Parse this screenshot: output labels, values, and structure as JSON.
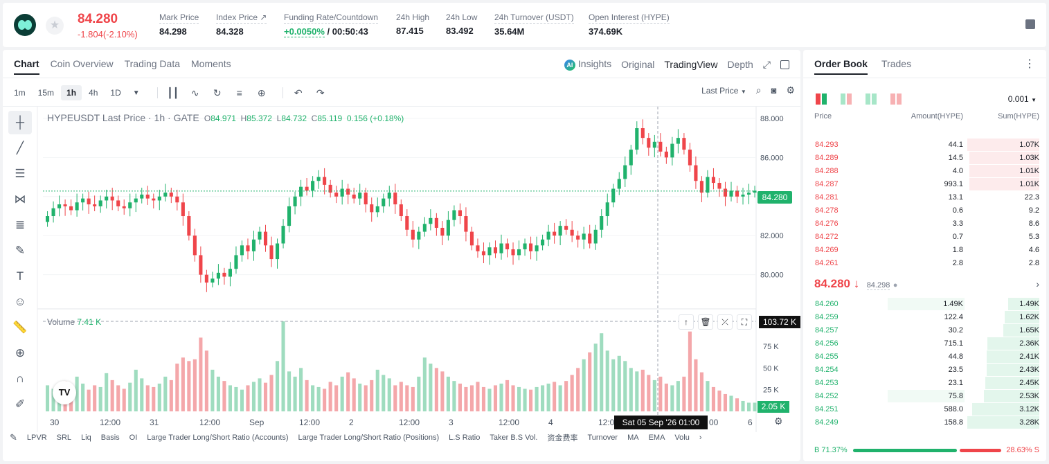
{
  "header": {
    "last_price": "84.280",
    "change": "-1.804(-2.10%)",
    "stats": [
      {
        "label": "Mark Price",
        "value": "84.298"
      },
      {
        "label": "Index Price ↗",
        "value": "84.328"
      },
      {
        "label": "Funding Rate/Countdown",
        "value_green": "+0.0050%",
        "value_rest": " / 00:50:43"
      },
      {
        "label": "24h High",
        "value": "87.415"
      },
      {
        "label": "24h Low",
        "value": "83.492"
      },
      {
        "label": "24h Turnover (USDT)",
        "value": "35.64M"
      },
      {
        "label": "Open Interest (HYPE)",
        "value": "374.69K"
      }
    ]
  },
  "chart_panel": {
    "tabs": [
      "Chart",
      "Coin Overview",
      "Trading Data",
      "Moments"
    ],
    "views": {
      "insights": "Insights",
      "original": "Original",
      "tradingview": "TradingView",
      "depth": "Depth"
    },
    "timeframes": [
      "1m",
      "15m",
      "1h",
      "4h",
      "1D"
    ],
    "active_timeframe": "1h",
    "price_source": "Last Price",
    "legend": {
      "title": "HYPEUSDT Last Price · 1h · GATE",
      "o": "84.971",
      "h": "85.372",
      "l": "84.732",
      "c": "85.119",
      "chg": "0.156 (+0.18%)"
    },
    "volume_label": "Volume",
    "volume_value": "7.41 K",
    "price_tag": "84.280",
    "volume_tag": "103.72 K",
    "volume_now_tag": "2.05 K",
    "time_tag": "Sat 05 Sep '26   01:00",
    "bottom_indicators": [
      "LPVR",
      "SRL",
      "Liq",
      "Basis",
      "OI",
      "Large Trader Long/Short Ratio (Accounts)",
      "Large Trader Long/Short Ratio (Positions)",
      "L.S Ratio",
      "Taker B.S Vol.",
      "资金费率",
      "Turnover",
      "MA",
      "EMA",
      "Volu"
    ]
  },
  "chart_data": {
    "type": "candlestick",
    "title": "HYPEUSDT Last Price · 1h · GATE",
    "y_ticks": [
      "88.000",
      "86.000",
      "84.000",
      "82.000",
      "80.000"
    ],
    "ylim": [
      78.5,
      88.6
    ],
    "x_ticks": [
      "30",
      "12:00",
      "31",
      "12:00",
      "Sep",
      "12:00",
      "2",
      "12:00",
      "3",
      "12:00",
      "4",
      "12:00",
      "00",
      "6"
    ],
    "volume_ticks": [
      "75 K",
      "50 K",
      "25 K"
    ],
    "volume_max": 103.72,
    "series_close": [
      83.0,
      83.4,
      83.6,
      83.5,
      83.3,
      83.7,
      83.9,
      83.6,
      83.5,
      83.8,
      84.0,
      83.8,
      83.5,
      83.4,
      83.7,
      83.9,
      84.1,
      83.9,
      83.8,
      84.0,
      84.2,
      84.0,
      83.7,
      83.0,
      82.0,
      81.0,
      80.0,
      79.6,
      79.8,
      80.1,
      79.9,
      80.3,
      81.0,
      81.5,
      81.2,
      81.8,
      82.2,
      81.5,
      80.8,
      81.6,
      82.5,
      83.5,
      84.0,
      84.5,
      84.3,
      84.8,
      85.0,
      84.6,
      84.2,
      84.0,
      84.4,
      84.1,
      83.9,
      84.2,
      83.6,
      83.2,
      83.5,
      83.9,
      84.2,
      83.6,
      83.0,
      82.3,
      81.8,
      82.2,
      82.6,
      82.9,
      82.4,
      82.0,
      82.8,
      83.3,
      83.0,
      82.2,
      81.5,
      81.2,
      81.0,
      81.4,
      81.1,
      81.6,
      81.3,
      81.0,
      81.3,
      81.6,
      81.2,
      81.5,
      81.8,
      82.2,
      82.0,
      82.5,
      82.3,
      82.0,
      81.8,
      82.1,
      81.6,
      82.3,
      83.0,
      83.7,
      84.4,
      84.9,
      85.6,
      86.4,
      87.5,
      87.0,
      86.5,
      86.8,
      86.3,
      86.0,
      86.7,
      87.0,
      86.4,
      85.6,
      84.8,
      84.2,
      85.0,
      84.7,
      84.4,
      84.0,
      84.3,
      84.0,
      84.1,
      84.2,
      84.3
    ],
    "series_volume": [
      30,
      26,
      22,
      35,
      28,
      40,
      32,
      25,
      30,
      28,
      44,
      36,
      30,
      26,
      33,
      48,
      38,
      30,
      28,
      32,
      40,
      36,
      55,
      62,
      58,
      60,
      85,
      70,
      48,
      40,
      35,
      30,
      28,
      25,
      30,
      34,
      38,
      33,
      42,
      58,
      103.72,
      46,
      40,
      50,
      36,
      30,
      28,
      26,
      34,
      30,
      40,
      45,
      38,
      32,
      30,
      36,
      48,
      42,
      38,
      30,
      34,
      30,
      28,
      40,
      62,
      55,
      50,
      46,
      40,
      35,
      32,
      28,
      30,
      34,
      28,
      26,
      30,
      32,
      36,
      30,
      28,
      26,
      25,
      28,
      30,
      32,
      34,
      30,
      35,
      42,
      50,
      60,
      68,
      78,
      90,
      70,
      60,
      64,
      58,
      50,
      46,
      48,
      42,
      36,
      40,
      32,
      30,
      35,
      40,
      92,
      60,
      45,
      35,
      28,
      24,
      20,
      18,
      15,
      12,
      10
    ]
  },
  "order_book": {
    "tabs": [
      "Order Book",
      "Trades"
    ],
    "step": "0.001",
    "headers": {
      "price": "Price",
      "amount": "Amount(HYPE)",
      "sum": "Sum(HYPE)"
    },
    "asks": [
      {
        "price": "84.293",
        "amount": "44.1",
        "sum": "1.07K",
        "depth": 0.32
      },
      {
        "price": "84.289",
        "amount": "14.5",
        "sum": "1.03K",
        "depth": 0.31
      },
      {
        "price": "84.288",
        "amount": "4.0",
        "sum": "1.01K",
        "depth": 0.31
      },
      {
        "price": "84.287",
        "amount": "993.1",
        "sum": "1.01K",
        "depth": 0.31
      },
      {
        "price": "84.281",
        "amount": "13.1",
        "sum": "22.3",
        "depth": 0
      },
      {
        "price": "84.278",
        "amount": "0.6",
        "sum": "9.2",
        "depth": 0
      },
      {
        "price": "84.276",
        "amount": "3.3",
        "sum": "8.6",
        "depth": 0
      },
      {
        "price": "84.272",
        "amount": "0.7",
        "sum": "5.3",
        "depth": 0
      },
      {
        "price": "84.269",
        "amount": "1.8",
        "sum": "4.6",
        "depth": 0
      },
      {
        "price": "84.261",
        "amount": "2.8",
        "sum": "2.8",
        "depth": 0
      }
    ],
    "mid": {
      "price": "84.280 ↓",
      "mark": "84.298"
    },
    "bids": [
      {
        "price": "84.260",
        "amount": "1.49K",
        "sum": "1.49K",
        "depth": 0.14,
        "own": 0.34
      },
      {
        "price": "84.259",
        "amount": "122.4",
        "sum": "1.62K",
        "depth": 0.155,
        "own": 0
      },
      {
        "price": "84.257",
        "amount": "30.2",
        "sum": "1.65K",
        "depth": 0.16,
        "own": 0
      },
      {
        "price": "84.256",
        "amount": "715.1",
        "sum": "2.36K",
        "depth": 0.23,
        "own": 0
      },
      {
        "price": "84.255",
        "amount": "44.8",
        "sum": "2.41K",
        "depth": 0.235,
        "own": 0
      },
      {
        "price": "84.254",
        "amount": "23.5",
        "sum": "2.43K",
        "depth": 0.235,
        "own": 0
      },
      {
        "price": "84.253",
        "amount": "23.1",
        "sum": "2.45K",
        "depth": 0.24,
        "own": 0
      },
      {
        "price": "84.252",
        "amount": "75.8",
        "sum": "2.53K",
        "depth": 0.245,
        "own": 0.34
      },
      {
        "price": "84.251",
        "amount": "588.0",
        "sum": "3.12K",
        "depth": 0.3,
        "own": 0
      },
      {
        "price": "84.249",
        "amount": "158.8",
        "sum": "3.28K",
        "depth": 0.32,
        "own": 0
      }
    ],
    "ratio": {
      "buy": "B 71.37%",
      "sell": "28.63% S"
    }
  }
}
